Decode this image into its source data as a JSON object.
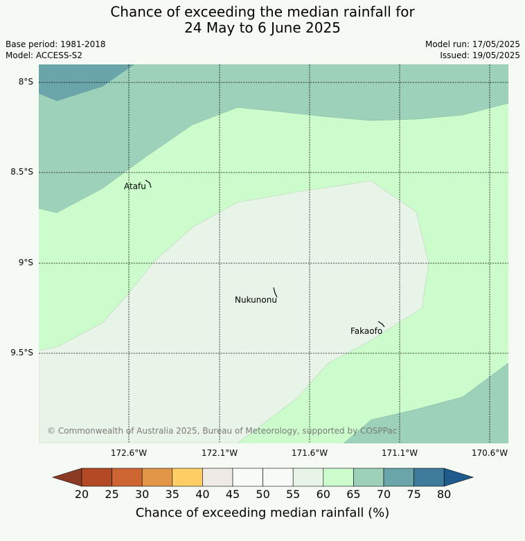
{
  "title": {
    "line1": "Chance of exceeding the median rainfall for",
    "line2": "24 May to 6 June 2025"
  },
  "meta": {
    "base_period": "Base period: 1981-2018",
    "model": "Model: ACCESS-S2",
    "model_run": "Model run: 17/05/2025",
    "issued": "Issued: 19/05/2025"
  },
  "map": {
    "lat_labels": [
      "8°S",
      "8.5°S",
      "9°S",
      "9.5°S"
    ],
    "lon_labels": [
      "172.6°W",
      "172.1°W",
      "171.6°W",
      "171.1°W",
      "170.6°W"
    ],
    "places": [
      {
        "name": "Atafu"
      },
      {
        "name": "Nukunonu"
      },
      {
        "name": "Fakaofo"
      }
    ],
    "copyright": "© Commonwealth of Australia 2025, Bureau of Meteorology, supported by COSPPac",
    "region_colors": {
      "50-55": "#f6faf5",
      "55-60": "#e9f4e8",
      "60-65": "#ccfccc",
      "65-70": "#9dd1b9",
      "70-75": "#6aa5a9"
    }
  },
  "colorbar": {
    "ticks": [
      "20",
      "25",
      "30",
      "35",
      "40",
      "45",
      "50",
      "55",
      "60",
      "65",
      "70",
      "75",
      "80"
    ],
    "colors": [
      "#8b3a23",
      "#b14a25",
      "#cd6533",
      "#e29647",
      "#fecd64",
      "#efeae6",
      "#f7fbf6",
      "#f7fbf6",
      "#e9f4e8",
      "#ccfccc",
      "#9dd1b9",
      "#6aa5a9",
      "#3f7b9a",
      "#1f5a8d"
    ],
    "label": "Chance of exceeding median rainfall (%)"
  }
}
